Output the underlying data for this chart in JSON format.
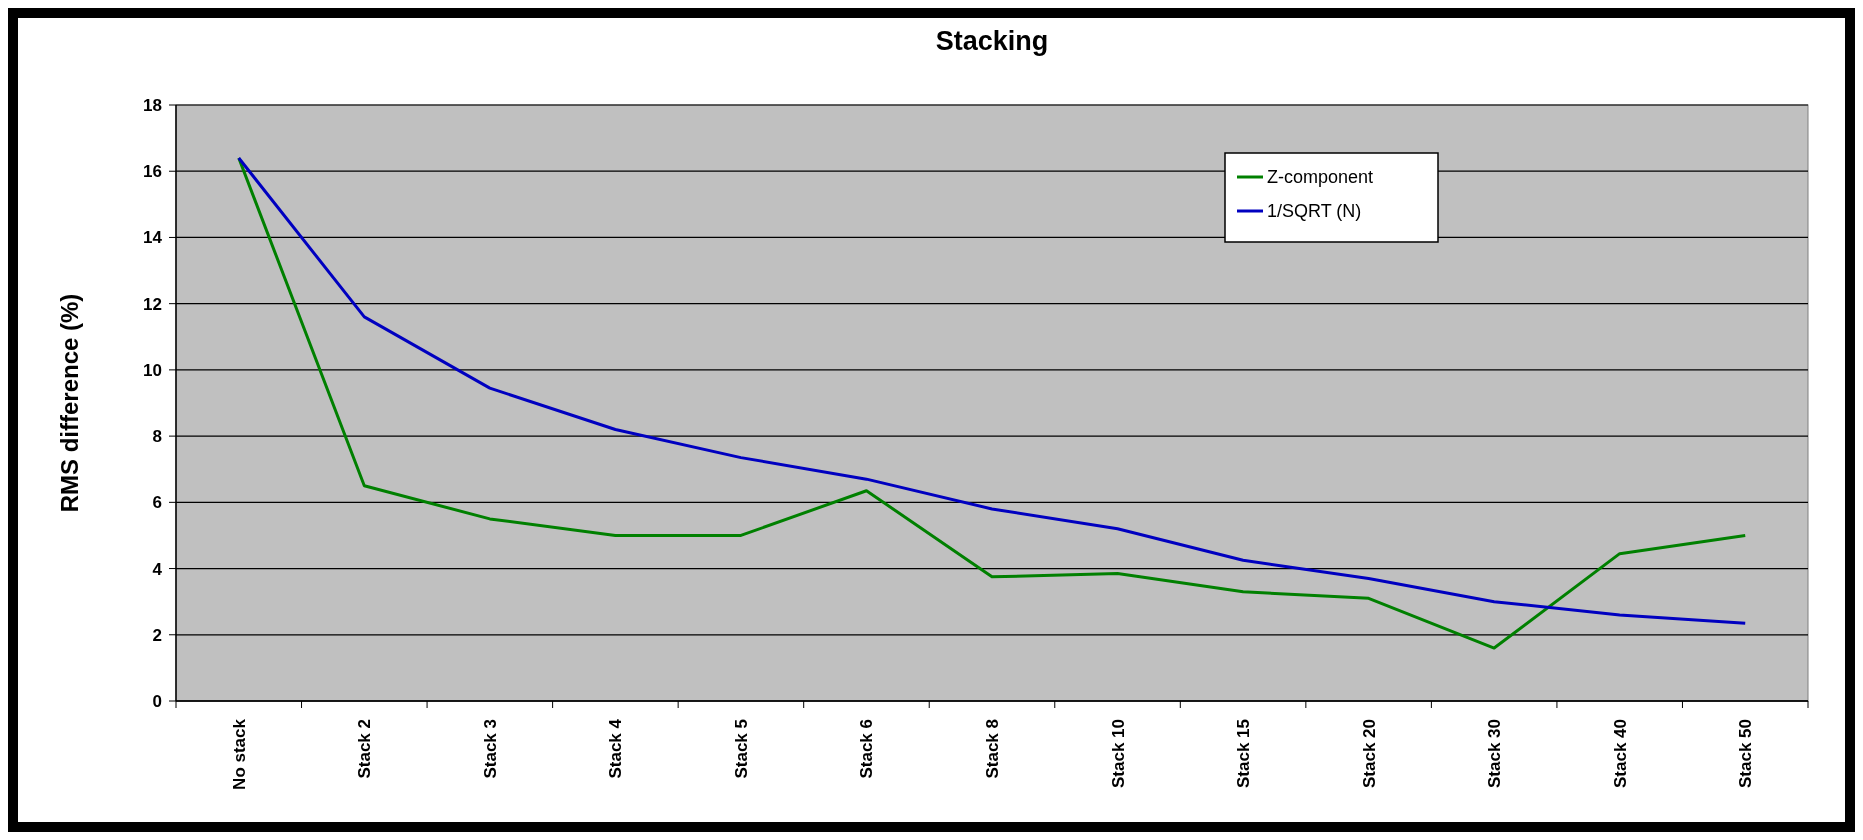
{
  "chart_data": {
    "type": "line",
    "title": "Stacking",
    "ylabel": "RMS difference (%)",
    "categories": [
      "No stack",
      "Stack 2",
      "Stack 3",
      "Stack 4",
      "Stack 5",
      "Stack 6",
      "Stack 8",
      "Stack 10",
      "Stack 15",
      "Stack 20",
      "Stack 30",
      "Stack 40",
      "Stack 50"
    ],
    "series": [
      {
        "name": "Z-component",
        "color": "#008000",
        "values": [
          16.4,
          6.5,
          5.5,
          5.0,
          5.0,
          6.35,
          3.75,
          3.85,
          3.3,
          3.1,
          1.6,
          4.45,
          5.0
        ]
      },
      {
        "name": "1/SQRT (N)",
        "color": "#0000c0",
        "values": [
          16.4,
          11.6,
          9.45,
          8.2,
          7.35,
          6.7,
          5.8,
          5.2,
          4.25,
          3.7,
          3.0,
          2.6,
          2.35
        ]
      }
    ],
    "ylim": [
      0,
      18
    ],
    "yticks": [
      0,
      2,
      4,
      6,
      8,
      10,
      12,
      14,
      16,
      18
    ],
    "grid": "y",
    "legend": "top right",
    "marker": "none",
    "line_style": "solid"
  }
}
